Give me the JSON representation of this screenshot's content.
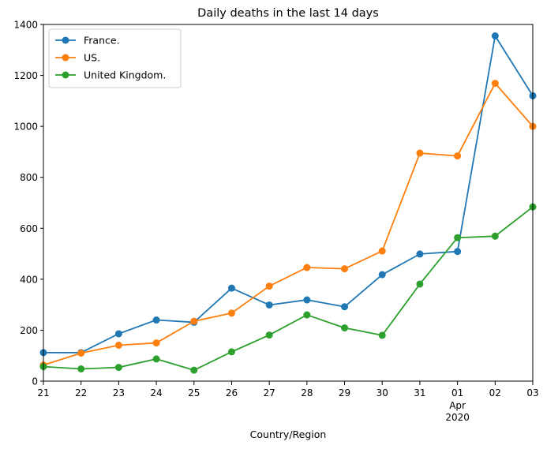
{
  "chart_data": {
    "type": "line",
    "title": "Daily deaths in the last 14 days",
    "xlabel": "Country/Region",
    "ylabel": "",
    "x": [
      "21",
      "22",
      "23",
      "24",
      "25",
      "26",
      "27",
      "28",
      "29",
      "30",
      "31",
      "01",
      "02",
      "03"
    ],
    "x_secondary_labels": [
      {
        "at": "01",
        "lines": [
          "Apr",
          "2020"
        ]
      }
    ],
    "ylim": [
      0,
      1400
    ],
    "yticks": [
      0,
      200,
      400,
      600,
      800,
      1000,
      1200,
      1400
    ],
    "grid": false,
    "legend_position": "upper-left",
    "series": [
      {
        "name": "France.",
        "color": "#1f77b4",
        "values": [
          112,
          112,
          186,
          240,
          231,
          365,
          299,
          319,
          292,
          418,
          499,
          509,
          1355,
          1120
        ]
      },
      {
        "name": "US.",
        "color": "#ff7f0e",
        "values": [
          63,
          110,
          141,
          150,
          235,
          267,
          373,
          446,
          441,
          511,
          895,
          884,
          1169,
          1000
        ]
      },
      {
        "name": "United Kingdom.",
        "color": "#2ca02c",
        "values": [
          57,
          48,
          54,
          87,
          43,
          115,
          181,
          260,
          209,
          180,
          381,
          563,
          569,
          684
        ]
      }
    ]
  }
}
